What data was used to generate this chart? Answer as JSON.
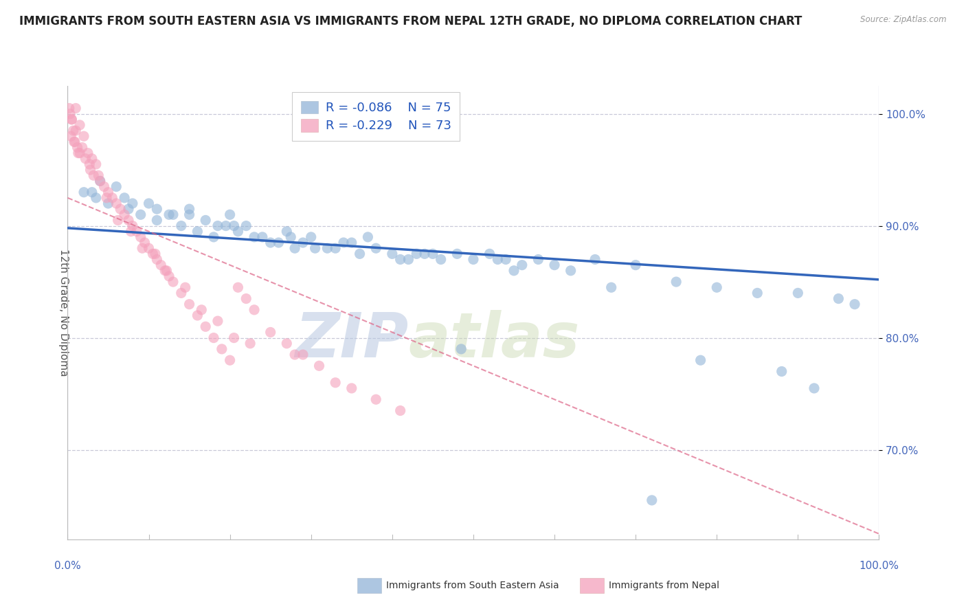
{
  "title": "IMMIGRANTS FROM SOUTH EASTERN ASIA VS IMMIGRANTS FROM NEPAL 12TH GRADE, NO DIPLOMA CORRELATION CHART",
  "source": "Source: ZipAtlas.com",
  "ylabel": "12th Grade, No Diploma",
  "x_min": 0.0,
  "x_max": 100.0,
  "y_min": 62.0,
  "y_max": 102.5,
  "y_ticks": [
    70.0,
    80.0,
    90.0,
    100.0
  ],
  "y_tick_labels": [
    "70.0%",
    "80.0%",
    "90.0%",
    "100.0%"
  ],
  "grid_color": "#c8c8d8",
  "background_color": "#ffffff",
  "blue_color": "#92b4d7",
  "pink_color": "#f4a0bb",
  "blue_R": -0.086,
  "blue_N": 75,
  "pink_R": -0.229,
  "pink_N": 73,
  "blue_line_color": "#3366bb",
  "pink_line_color": "#dd6688",
  "blue_line_start_x": 0.0,
  "blue_line_start_y": 89.8,
  "blue_line_end_x": 100.0,
  "blue_line_end_y": 85.2,
  "pink_line_start_x": 0.0,
  "pink_line_start_y": 92.5,
  "pink_line_end_x": 100.0,
  "pink_line_end_y": 62.5,
  "watermark_zip": "ZIP",
  "watermark_atlas": "atlas",
  "legend_label_blue": "Immigrants from South Eastern Asia",
  "legend_label_pink": "Immigrants from Nepal",
  "title_fontsize": 12,
  "axis_label_fontsize": 11,
  "tick_fontsize": 11,
  "legend_fontsize": 13,
  "blue_scatter_x": [
    2.0,
    3.5,
    5.0,
    6.0,
    7.5,
    9.0,
    10.0,
    11.0,
    12.5,
    14.0,
    15.0,
    16.0,
    17.0,
    18.0,
    19.5,
    21.0,
    23.0,
    25.0,
    27.0,
    28.0,
    30.0,
    22.0,
    24.0,
    26.0,
    32.0,
    34.0,
    36.0,
    38.0,
    40.0,
    37.0,
    42.0,
    44.0,
    46.0,
    48.0,
    50.0,
    52.0,
    54.0,
    56.0,
    58.0,
    65.0,
    70.0,
    4.0,
    8.0,
    13.0,
    20.0,
    29.0,
    33.0,
    41.0,
    53.0,
    60.0,
    75.0,
    80.0,
    85.0,
    90.0,
    95.0,
    97.0,
    62.0,
    45.0,
    35.0,
    15.0,
    7.0,
    3.0,
    11.0,
    18.5,
    27.5,
    43.0,
    55.0,
    67.0,
    78.0,
    88.0,
    92.0,
    30.5,
    20.5,
    48.5,
    72.0
  ],
  "blue_scatter_y": [
    93.0,
    92.5,
    92.0,
    93.5,
    91.5,
    91.0,
    92.0,
    90.5,
    91.0,
    90.0,
    91.5,
    89.5,
    90.5,
    89.0,
    90.0,
    89.5,
    89.0,
    88.5,
    89.5,
    88.0,
    89.0,
    90.0,
    89.0,
    88.5,
    88.0,
    88.5,
    87.5,
    88.0,
    87.5,
    89.0,
    87.0,
    87.5,
    87.0,
    87.5,
    87.0,
    87.5,
    87.0,
    86.5,
    87.0,
    87.0,
    86.5,
    94.0,
    92.0,
    91.0,
    91.0,
    88.5,
    88.0,
    87.0,
    87.0,
    86.5,
    85.0,
    84.5,
    84.0,
    84.0,
    83.5,
    83.0,
    86.0,
    87.5,
    88.5,
    91.0,
    92.5,
    93.0,
    91.5,
    90.0,
    89.0,
    87.5,
    86.0,
    84.5,
    78.0,
    77.0,
    75.5,
    88.0,
    90.0,
    79.0,
    65.5
  ],
  "pink_scatter_x": [
    0.5,
    1.0,
    1.5,
    2.0,
    0.8,
    1.2,
    2.5,
    3.0,
    0.3,
    0.7,
    1.8,
    2.2,
    3.5,
    1.0,
    0.5,
    2.8,
    1.5,
    0.2,
    3.8,
    4.0,
    4.5,
    5.0,
    5.5,
    6.0,
    6.5,
    7.0,
    7.5,
    8.0,
    8.5,
    9.0,
    9.5,
    10.0,
    10.5,
    11.0,
    11.5,
    12.0,
    12.5,
    13.0,
    14.0,
    15.0,
    16.0,
    17.0,
    18.0,
    19.0,
    20.0,
    21.0,
    22.0,
    23.0,
    25.0,
    27.0,
    29.0,
    31.0,
    35.0,
    38.0,
    0.4,
    0.9,
    1.3,
    2.7,
    3.2,
    4.8,
    6.2,
    7.8,
    9.2,
    10.8,
    12.2,
    14.5,
    16.5,
    18.5,
    20.5,
    22.5,
    41.0,
    28.0,
    33.0
  ],
  "pink_scatter_y": [
    99.5,
    100.5,
    99.0,
    98.0,
    97.5,
    97.0,
    96.5,
    96.0,
    100.0,
    98.5,
    97.0,
    96.0,
    95.5,
    98.5,
    99.5,
    95.0,
    96.5,
    100.5,
    94.5,
    94.0,
    93.5,
    93.0,
    92.5,
    92.0,
    91.5,
    91.0,
    90.5,
    90.0,
    89.5,
    89.0,
    88.5,
    88.0,
    87.5,
    87.0,
    86.5,
    86.0,
    85.5,
    85.0,
    84.0,
    83.0,
    82.0,
    81.0,
    80.0,
    79.0,
    78.0,
    84.5,
    83.5,
    82.5,
    80.5,
    79.5,
    78.5,
    77.5,
    75.5,
    74.5,
    98.0,
    97.5,
    96.5,
    95.5,
    94.5,
    92.5,
    90.5,
    89.5,
    88.0,
    87.5,
    86.0,
    84.5,
    82.5,
    81.5,
    80.0,
    79.5,
    73.5,
    78.5,
    76.0
  ]
}
